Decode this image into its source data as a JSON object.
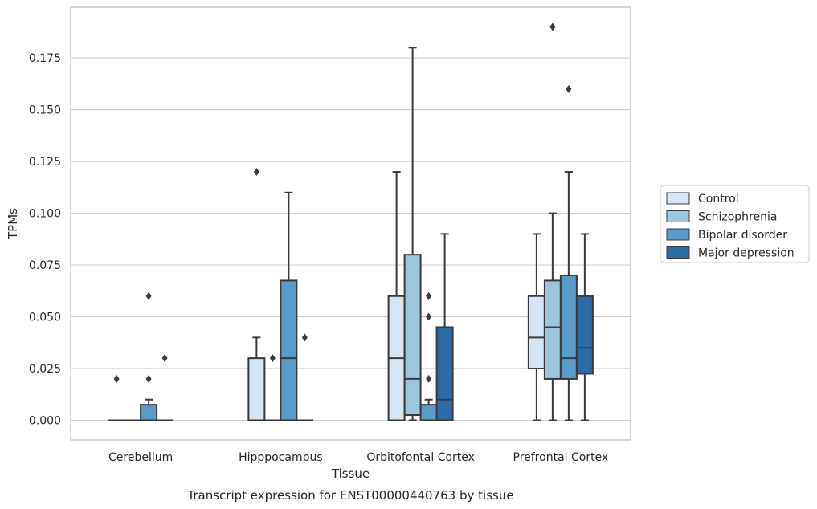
{
  "chart_data": {
    "type": "box",
    "title": "",
    "caption": "Transcript expression for ENST00000440763 by tissue",
    "xlabel": "Tissue",
    "ylabel": "TPMs",
    "ylim": [
      -0.0095,
      0.1995
    ],
    "yticks": [
      0.0,
      0.025,
      0.05,
      0.075,
      0.1,
      0.125,
      0.15,
      0.175
    ],
    "ytick_labels": [
      "0.000",
      "0.025",
      "0.050",
      "0.075",
      "0.100",
      "0.125",
      "0.150",
      "0.175"
    ],
    "grid": true,
    "legend_position": "right",
    "categories": [
      "Cerebellum",
      "Hipppocampus",
      "Orbitofontal Cortex",
      "Prefrontal Cortex"
    ],
    "series": [
      {
        "name": "Control",
        "color": "#d6e5f3",
        "boxes": [
          {
            "whislo": 0,
            "q1": 0,
            "med": 0,
            "q3": 0,
            "whishi": 0,
            "fliers": [
              0.02
            ]
          },
          {
            "whislo": 0,
            "q1": 0,
            "med": 0,
            "q3": 0.03,
            "whishi": 0.04,
            "fliers": [
              0.12
            ]
          },
          {
            "whislo": 0,
            "q1": 0,
            "med": 0.03,
            "q3": 0.06,
            "whishi": 0.12,
            "fliers": []
          },
          {
            "whislo": 0,
            "q1": 0.025,
            "med": 0.04,
            "q3": 0.06,
            "whishi": 0.09,
            "fliers": []
          }
        ]
      },
      {
        "name": "Schizophrenia",
        "color": "#9cc5de",
        "boxes": [
          {
            "whislo": 0,
            "q1": 0,
            "med": 0,
            "q3": 0,
            "whishi": 0,
            "fliers": []
          },
          {
            "whislo": 0,
            "q1": 0,
            "med": 0,
            "q3": 0,
            "whishi": 0,
            "fliers": [
              0.03
            ]
          },
          {
            "whislo": 0,
            "q1": 0.0025,
            "med": 0.02,
            "q3": 0.08,
            "whishi": 0.18,
            "fliers": []
          },
          {
            "whislo": 0,
            "q1": 0.02,
            "med": 0.045,
            "q3": 0.0675,
            "whishi": 0.1,
            "fliers": [
              0.19
            ]
          }
        ]
      },
      {
        "name": "Bipolar disorder",
        "color": "#5a9bc8",
        "boxes": [
          {
            "whislo": 0,
            "q1": 0,
            "med": 0,
            "q3": 0.0075,
            "whishi": 0.01,
            "fliers": [
              0.02,
              0.06
            ]
          },
          {
            "whislo": 0,
            "q1": 0,
            "med": 0.03,
            "q3": 0.0675,
            "whishi": 0.11,
            "fliers": []
          },
          {
            "whislo": 0,
            "q1": 0,
            "med": 0,
            "q3": 0.0075,
            "whishi": 0.01,
            "fliers": [
              0.02,
              0.05,
              0.06
            ]
          },
          {
            "whislo": 0,
            "q1": 0.02,
            "med": 0.03,
            "q3": 0.07,
            "whishi": 0.12,
            "fliers": [
              0.16
            ]
          }
        ]
      },
      {
        "name": "Major depression",
        "color": "#2c6ba4",
        "boxes": [
          {
            "whislo": 0,
            "q1": 0,
            "med": 0,
            "q3": 0,
            "whishi": 0,
            "fliers": [
              0.03
            ]
          },
          {
            "whislo": 0,
            "q1": 0,
            "med": 0,
            "q3": 0,
            "whishi": 0,
            "fliers": [
              0.04
            ]
          },
          {
            "whislo": 0,
            "q1": 0,
            "med": 0.01,
            "q3": 0.045,
            "whishi": 0.09,
            "fliers": []
          },
          {
            "whislo": 0,
            "q1": 0.0225,
            "med": 0.035,
            "q3": 0.06,
            "whishi": 0.09,
            "fliers": []
          }
        ]
      }
    ]
  }
}
